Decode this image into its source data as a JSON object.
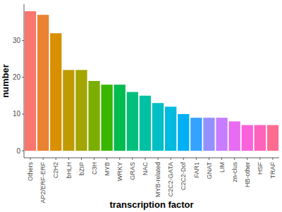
{
  "chart_data": {
    "type": "bar",
    "x_label": "transcription factor",
    "y_label": "number",
    "categories": [
      "Others",
      "AP2/ERF-ERF",
      "C2H2",
      "bHLH",
      "bZIP",
      "C3H",
      "MYB",
      "WRKY",
      "GRAS",
      "NAC",
      "MYB-related",
      "C2C2-GATA",
      "C2C2-Dof",
      "FAR1",
      "GNAT",
      "LIM",
      "zn-clus",
      "HB-other",
      "HSF",
      "TRAF"
    ],
    "values": [
      38,
      37,
      32,
      22,
      22,
      19,
      18,
      18,
      16,
      15,
      13,
      12,
      10,
      9,
      9,
      9,
      8,
      7,
      7,
      7
    ],
    "colors": [
      "#F8766D",
      "#EA8331",
      "#D89000",
      "#C09B00",
      "#A3A500",
      "#7CAE00",
      "#39B600",
      "#00BB4E",
      "#00BF7D",
      "#00C1A3",
      "#00BFC4",
      "#00BAE0",
      "#00B0F6",
      "#35A2FF",
      "#9590FF",
      "#C77CFF",
      "#E76BF3",
      "#FA62DB",
      "#FF62BC",
      "#FF6C91"
    ],
    "ylim": [
      -1.9,
      39.9
    ],
    "yticks": [
      0,
      10,
      20,
      30
    ],
    "grid": false
  }
}
